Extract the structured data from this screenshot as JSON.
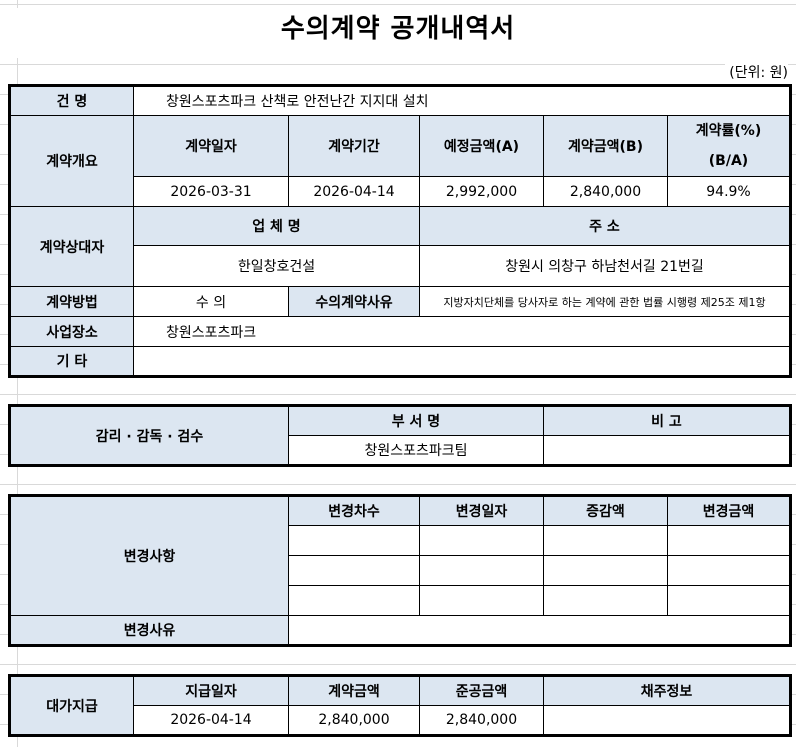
{
  "title": "수의계약 공개내역서",
  "unit": "(단위: 원)",
  "main": {
    "name_label": "건 명",
    "name_value": "창원스포츠파크 산책로 안전난간 지지대 설치",
    "overview_label": "계약개요",
    "overview_headers": [
      "계약일자",
      "계약기간",
      "예정금액(A)",
      "계약금액(B)",
      "계약률(%)",
      "(B/A)"
    ],
    "overview_values": [
      "2026-03-31",
      "2026-04-14",
      "2,992,000",
      "2,840,000",
      "94.9%"
    ],
    "party_label": "계약상대자",
    "company_header": "업 체 명",
    "address_header": "주 소",
    "company_value": "한일창호건설",
    "address_value": "창원시 의창구 하남천서길 21번길",
    "method_label": "계약방법",
    "method_value": "수 의",
    "reason_label": "수의계약사유",
    "reason_value": "지방자치단체를 당사자로 하는 계약에 관한 법률 시행령 제25조 제1항",
    "site_label": "사업장소",
    "site_value": "창원스포츠파크",
    "etc_label": "기 타"
  },
  "supervision": {
    "label": "감리 · 감독 · 검수",
    "dept_header": "부 서 명",
    "note_header": "비 고",
    "dept_value": "창원스포츠파크팀"
  },
  "changes": {
    "label": "변경사항",
    "headers": [
      "변경차수",
      "변경일자",
      "증감액",
      "변경금액"
    ],
    "reason_label": "변경사유"
  },
  "payment": {
    "label": "대가지급",
    "headers": [
      "지급일자",
      "계약금액",
      "준공금액",
      "채주정보"
    ],
    "values": [
      "2026-04-14",
      "2,840,000",
      "2,840,000"
    ]
  }
}
